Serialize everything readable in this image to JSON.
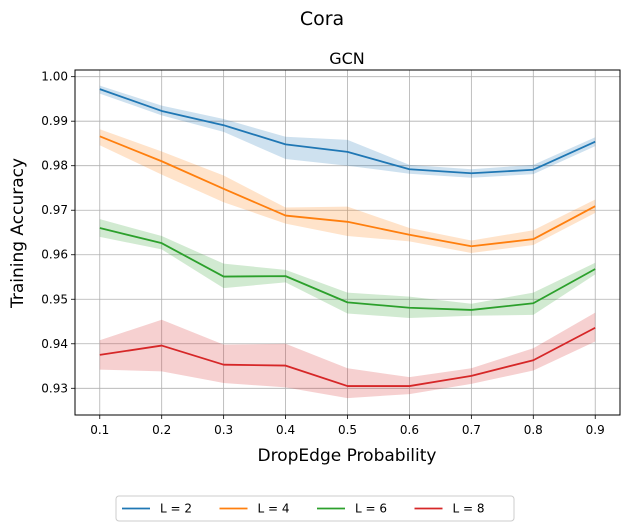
{
  "chart_data": {
    "type": "line",
    "suptitle": "Cora",
    "title": "GCN",
    "xlabel": "DropEdge Probability",
    "ylabel": "Training Accuracy",
    "x": [
      0.1,
      0.2,
      0.3,
      0.4,
      0.5,
      0.6,
      0.7,
      0.8,
      0.9
    ],
    "xlim": [
      0.06,
      0.94
    ],
    "ylim": [
      0.924,
      1.0015
    ],
    "xticks": [
      "0.1",
      "0.2",
      "0.3",
      "0.4",
      "0.5",
      "0.6",
      "0.7",
      "0.8",
      "0.9"
    ],
    "yticks": [
      "0.93",
      "0.94",
      "0.95",
      "0.96",
      "0.97",
      "0.98",
      "0.99",
      "1.00"
    ],
    "grid": true,
    "legend_position": "bottom-center",
    "series": [
      {
        "name": "L = 2",
        "color": "#1f77b4",
        "values": [
          0.9972,
          0.9923,
          0.9891,
          0.9848,
          0.9831,
          0.9792,
          0.9783,
          0.9791,
          0.9854
        ],
        "lower": [
          0.9962,
          0.9913,
          0.9876,
          0.9815,
          0.98,
          0.9782,
          0.9773,
          0.9781,
          0.9844
        ],
        "upper": [
          0.998,
          0.9935,
          0.9905,
          0.9865,
          0.9858,
          0.9802,
          0.9792,
          0.9802,
          0.9864
        ]
      },
      {
        "name": "L = 4",
        "color": "#ff7f0e",
        "values": [
          0.9866,
          0.981,
          0.9748,
          0.9688,
          0.9674,
          0.9645,
          0.9619,
          0.9635,
          0.9709
        ],
        "lower": [
          0.9846,
          0.978,
          0.9718,
          0.967,
          0.9642,
          0.963,
          0.9604,
          0.9622,
          0.9694
        ],
        "upper": [
          0.9882,
          0.9832,
          0.9778,
          0.9706,
          0.9708,
          0.966,
          0.9632,
          0.9655,
          0.9724
        ]
      },
      {
        "name": "L = 6",
        "color": "#2ca02c",
        "values": [
          0.966,
          0.9626,
          0.9551,
          0.9552,
          0.9493,
          0.9481,
          0.9476,
          0.9491,
          0.9568
        ],
        "lower": [
          0.964,
          0.9612,
          0.9525,
          0.9538,
          0.9468,
          0.9458,
          0.9463,
          0.9465,
          0.9556
        ],
        "upper": [
          0.968,
          0.9642,
          0.958,
          0.9566,
          0.9515,
          0.9506,
          0.949,
          0.9515,
          0.9582
        ]
      },
      {
        "name": "L = 8",
        "color": "#d62728",
        "values": [
          0.9375,
          0.9396,
          0.9353,
          0.9351,
          0.9305,
          0.9305,
          0.9328,
          0.9363,
          0.9436
        ],
        "lower": [
          0.9342,
          0.9338,
          0.9312,
          0.9302,
          0.9278,
          0.9287,
          0.931,
          0.934,
          0.9405
        ],
        "upper": [
          0.9408,
          0.9454,
          0.9398,
          0.94,
          0.9345,
          0.9325,
          0.9345,
          0.939,
          0.947
        ]
      }
    ]
  }
}
